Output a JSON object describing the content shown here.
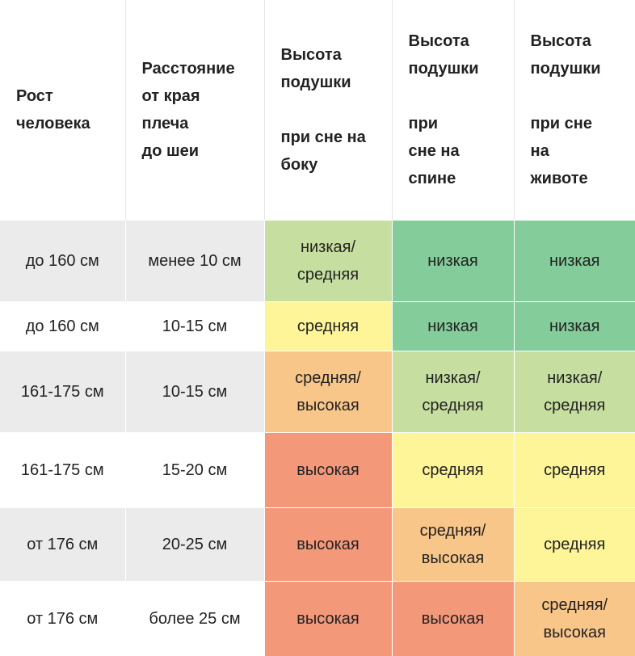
{
  "headers": [
    "Рост\nчеловека",
    "Расстояние\nот края\nплеча\n до шеи",
    "Высота\nподушки\n\nпри сне на\nбоку",
    "Высота\nподушки\n\nпри\nсне на\nспине",
    "Высота\nподушки\n\nпри сне\nна\nживоте"
  ],
  "rows": [
    {
      "height": "до 160 см",
      "distance": "менее 10 см",
      "side": "низкая/ средняя",
      "back": "низкая",
      "stomach": "низкая"
    },
    {
      "height": "до 160 см",
      "distance": "10-15 см",
      "side": "средняя",
      "back": "низкая",
      "stomach": "низкая"
    },
    {
      "height": "161-175 см",
      "distance": "10-15 см",
      "side": "средняя/ высокая",
      "back": "низкая/ средняя",
      "stomach": "низкая/ средняя"
    },
    {
      "height": "161-175 см",
      "distance": "15-20 см",
      "side": "высокая",
      "back": "средняя",
      "stomach": "средняя"
    },
    {
      "height": "от 176 см",
      "distance": "20-25 см",
      "side": "высокая",
      "back": "средняя/ высокая",
      "stomach": "средняя"
    },
    {
      "height": "от 176 см",
      "distance": "более 25 см",
      "side": "высокая",
      "back": "высокая",
      "stomach": "средняя/ высокая"
    }
  ],
  "level_colors": {
    "низкая": "#84cc9a",
    "низкая/ средняя": "#c6dfa0",
    "средняя": "#fdf597",
    "средняя/ высокая": "#f9c689",
    "высокая": "#f4987a"
  }
}
